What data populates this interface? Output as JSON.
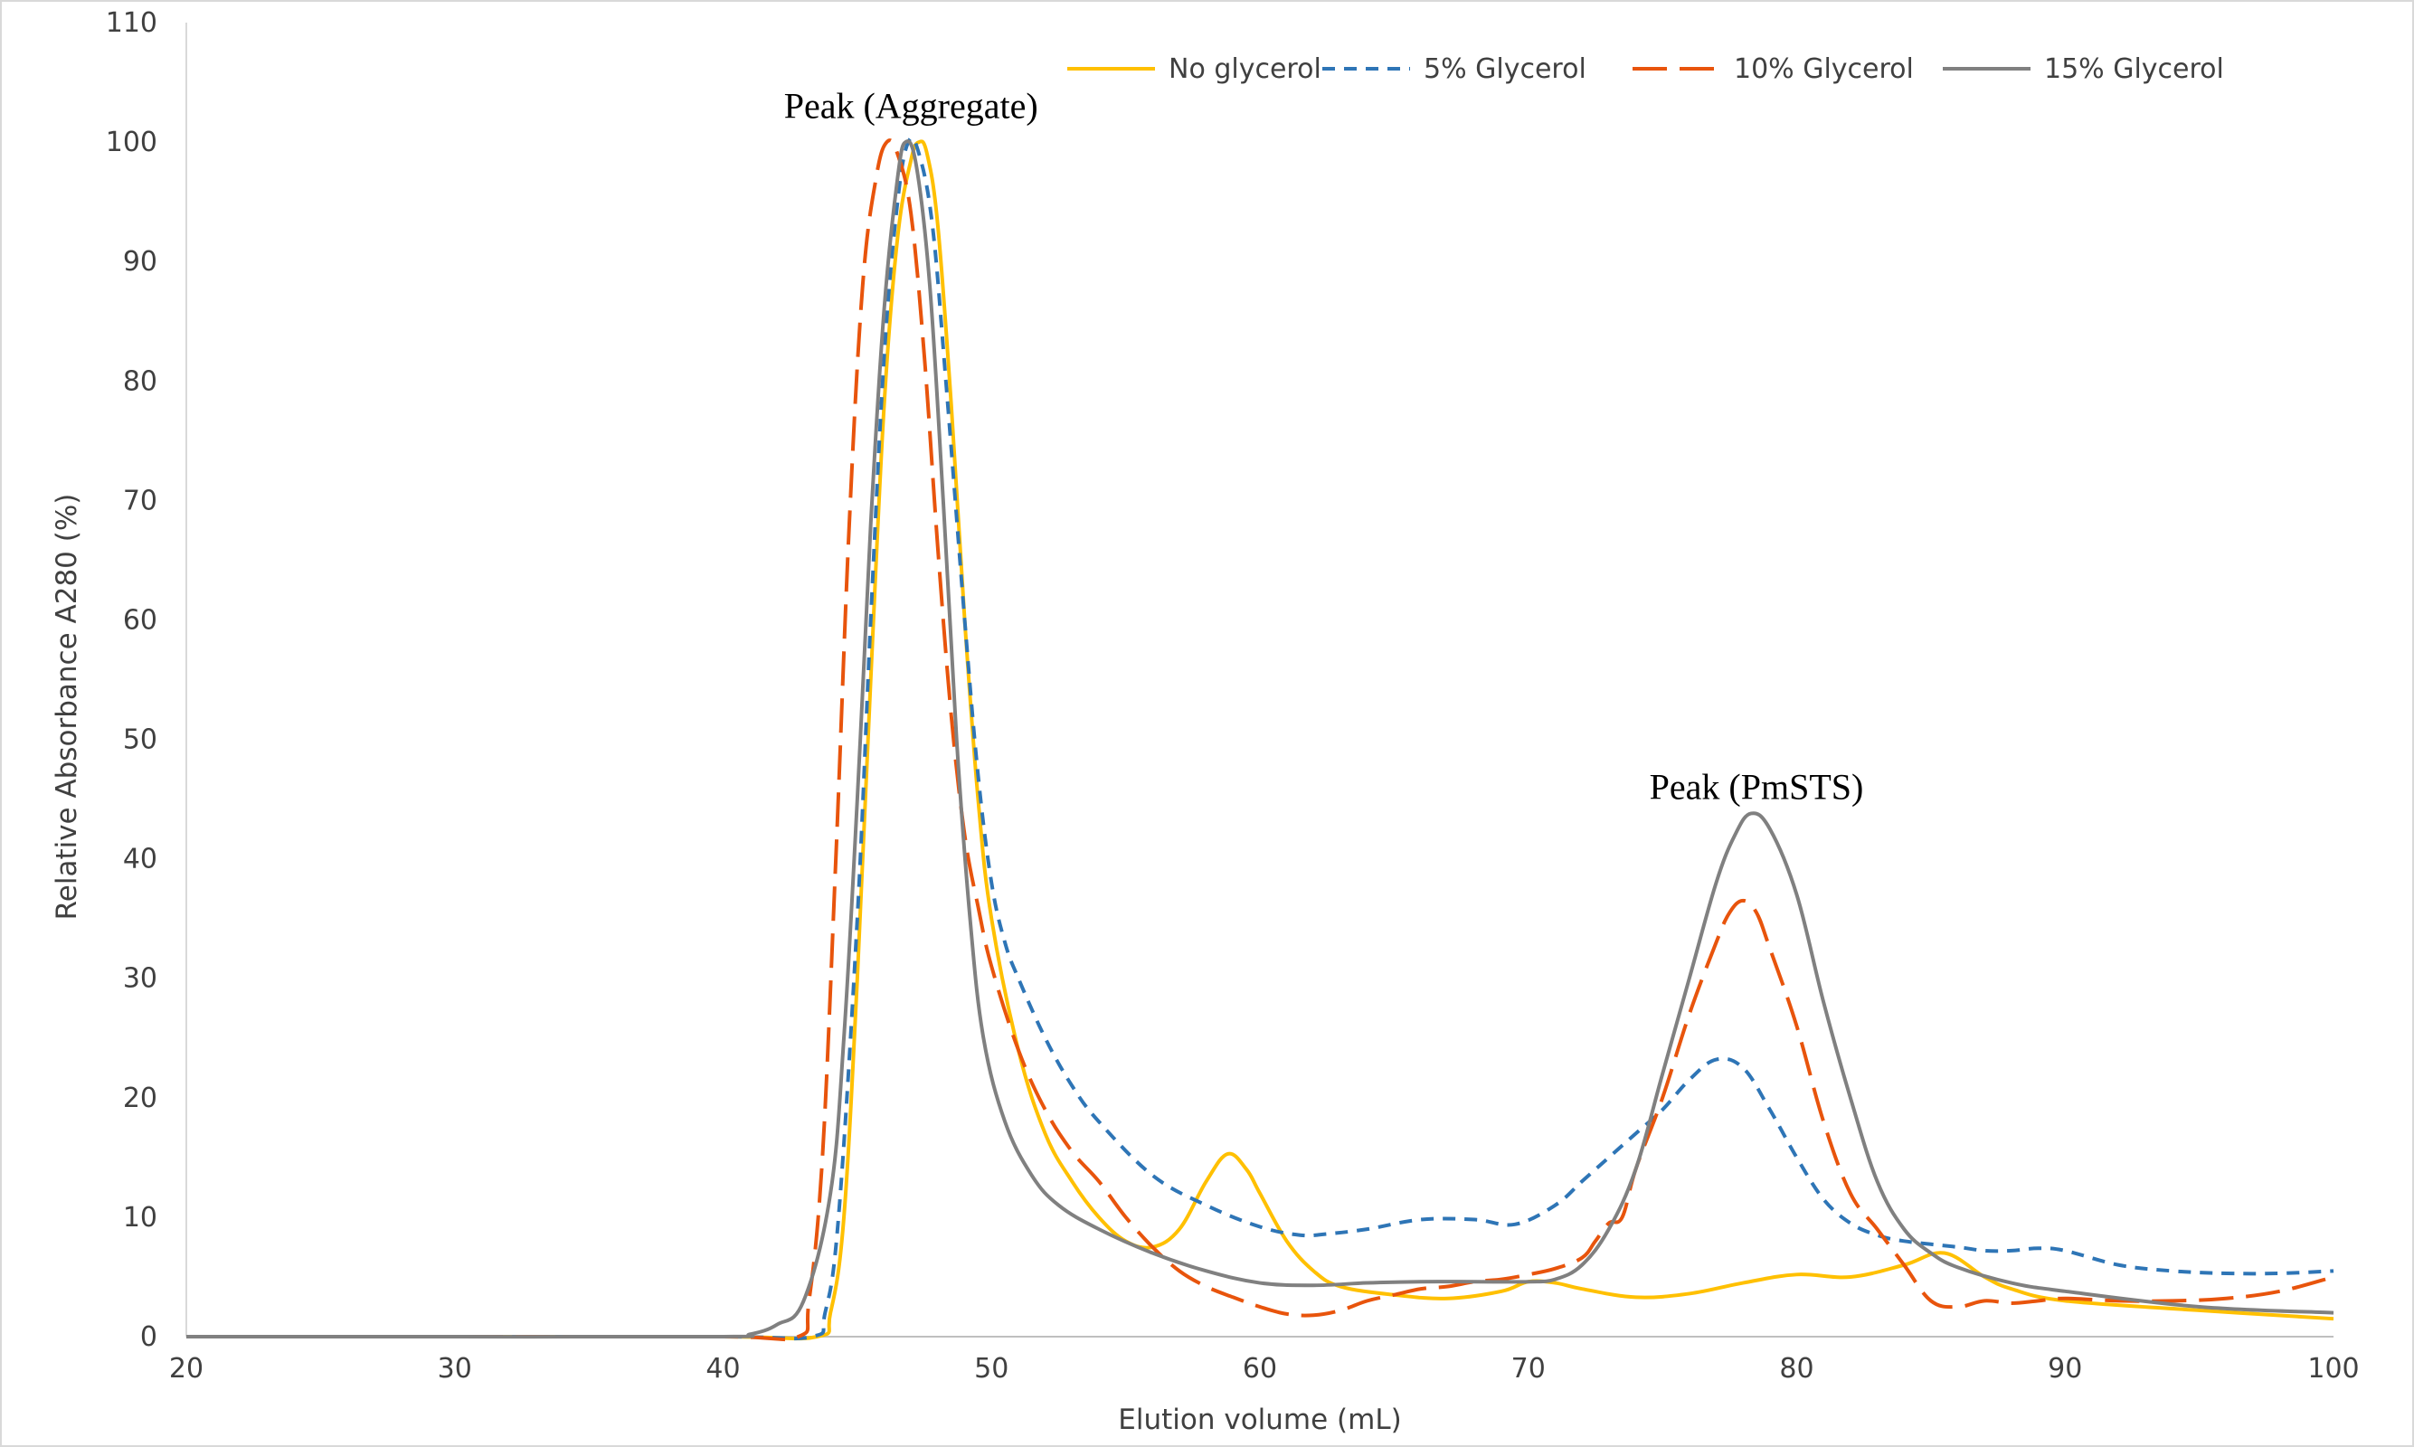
{
  "chart_data": {
    "type": "line",
    "title": "",
    "xlabel": "Elution volume (mL)",
    "ylabel": "Relative Absorbance A280 (%)",
    "xlim": [
      20,
      100
    ],
    "ylim": [
      0,
      110
    ],
    "xticks": [
      20,
      30,
      40,
      50,
      60,
      70,
      80,
      90,
      100
    ],
    "yticks": [
      0,
      10,
      20,
      30,
      40,
      50,
      60,
      70,
      80,
      90,
      100,
      110
    ],
    "grid": false,
    "legend_position": "top-right",
    "annotations": [
      {
        "text": "Peak (Aggregate)",
        "x": 47,
        "y": 102
      },
      {
        "text": "Peak (PmSTS)",
        "x": 78.5,
        "y": 45
      }
    ],
    "series": [
      {
        "name": "No glycerol",
        "color": "#FFC000",
        "dash": "solid",
        "points": [
          [
            20,
            0
          ],
          [
            30,
            0
          ],
          [
            40,
            0
          ],
          [
            43.5,
            0
          ],
          [
            44,
            2
          ],
          [
            44.5,
            10
          ],
          [
            45,
            30
          ],
          [
            45.5,
            55
          ],
          [
            46,
            78
          ],
          [
            46.5,
            92
          ],
          [
            47,
            98.5
          ],
          [
            47.3,
            100
          ],
          [
            47.6,
            99
          ],
          [
            48,
            93
          ],
          [
            48.5,
            78
          ],
          [
            49,
            60
          ],
          [
            49.5,
            45
          ],
          [
            50,
            35
          ],
          [
            51,
            24
          ],
          [
            52,
            17
          ],
          [
            53,
            13
          ],
          [
            54,
            10
          ],
          [
            55,
            8
          ],
          [
            56,
            7.5
          ],
          [
            57,
            9
          ],
          [
            58,
            13
          ],
          [
            58.8,
            15.3
          ],
          [
            59.5,
            14
          ],
          [
            60,
            12
          ],
          [
            61,
            8
          ],
          [
            62,
            5.5
          ],
          [
            63,
            4.2
          ],
          [
            65,
            3.5
          ],
          [
            67,
            3.2
          ],
          [
            69,
            3.8
          ],
          [
            70,
            4.6
          ],
          [
            71,
            4.5
          ],
          [
            72,
            4
          ],
          [
            74,
            3.3
          ],
          [
            76,
            3.6
          ],
          [
            78,
            4.5
          ],
          [
            80,
            5.2
          ],
          [
            82,
            5
          ],
          [
            84,
            6
          ],
          [
            85.5,
            7
          ],
          [
            87,
            5
          ],
          [
            88,
            4
          ],
          [
            90,
            3
          ],
          [
            95,
            2.2
          ],
          [
            100,
            1.5
          ]
        ]
      },
      {
        "name": "5% Glycerol",
        "color": "#2E75B6",
        "dash": "short-dash",
        "points": [
          [
            20,
            0
          ],
          [
            30,
            0
          ],
          [
            40,
            0
          ],
          [
            43.3,
            0
          ],
          [
            43.8,
            2
          ],
          [
            44.3,
            10
          ],
          [
            45,
            35
          ],
          [
            45.5,
            60
          ],
          [
            46,
            82
          ],
          [
            46.5,
            95
          ],
          [
            46.9,
            100
          ],
          [
            47.3,
            99
          ],
          [
            47.8,
            93
          ],
          [
            48.3,
            80
          ],
          [
            49,
            60
          ],
          [
            49.5,
            47
          ],
          [
            50,
            38
          ],
          [
            50.5,
            33
          ],
          [
            51,
            30
          ],
          [
            52,
            25
          ],
          [
            53,
            21
          ],
          [
            54,
            18
          ],
          [
            56,
            13.5
          ],
          [
            58,
            11
          ],
          [
            60,
            9.2
          ],
          [
            61.5,
            8.5
          ],
          [
            62.5,
            8.6
          ],
          [
            64,
            9
          ],
          [
            66,
            9.8
          ],
          [
            68,
            9.8
          ],
          [
            69.5,
            9.4
          ],
          [
            71,
            11
          ],
          [
            72,
            13
          ],
          [
            73,
            15
          ],
          [
            74,
            17
          ],
          [
            75,
            19
          ],
          [
            76,
            21.5
          ],
          [
            77,
            23.2
          ],
          [
            78,
            22.5
          ],
          [
            79,
            19
          ],
          [
            80,
            15
          ],
          [
            81,
            11.5
          ],
          [
            82,
            9.5
          ],
          [
            83,
            8.5
          ],
          [
            84,
            8
          ],
          [
            86,
            7.5
          ],
          [
            87,
            7.2
          ],
          [
            88,
            7.2
          ],
          [
            89,
            7.4
          ],
          [
            90,
            7.2
          ],
          [
            92,
            6
          ],
          [
            94,
            5.5
          ],
          [
            96,
            5.3
          ],
          [
            98,
            5.3
          ],
          [
            100,
            5.5
          ]
        ]
      },
      {
        "name": "10% Glycerol",
        "color": "#E8540C",
        "dash": "long-dash",
        "points": [
          [
            20,
            0
          ],
          [
            30,
            0
          ],
          [
            40,
            0
          ],
          [
            42.8,
            0
          ],
          [
            43.2,
            3
          ],
          [
            43.7,
            15
          ],
          [
            44.2,
            40
          ],
          [
            44.7,
            68
          ],
          [
            45.2,
            88
          ],
          [
            45.7,
            97
          ],
          [
            46.1,
            100
          ],
          [
            46.5,
            99
          ],
          [
            47,
            94
          ],
          [
            47.5,
            82
          ],
          [
            48,
            66
          ],
          [
            48.5,
            52
          ],
          [
            49,
            42
          ],
          [
            49.5,
            36
          ],
          [
            50,
            31
          ],
          [
            51,
            24
          ],
          [
            52,
            19
          ],
          [
            53,
            15.5
          ],
          [
            54,
            13
          ],
          [
            55,
            10
          ],
          [
            56,
            7.5
          ],
          [
            57,
            5.5
          ],
          [
            58,
            4.2
          ],
          [
            59,
            3.3
          ],
          [
            60,
            2.5
          ],
          [
            61,
            1.9
          ],
          [
            62,
            1.8
          ],
          [
            63,
            2.2
          ],
          [
            64,
            3
          ],
          [
            65,
            3.5
          ],
          [
            66,
            4
          ],
          [
            67,
            4.2
          ],
          [
            68,
            4.6
          ],
          [
            69,
            4.8
          ],
          [
            70,
            5.2
          ],
          [
            71,
            5.7
          ],
          [
            72,
            6.6
          ],
          [
            72.5,
            8
          ],
          [
            73,
            9.5
          ],
          [
            73.5,
            10
          ],
          [
            74,
            14
          ],
          [
            75,
            20
          ],
          [
            76,
            27
          ],
          [
            77,
            33
          ],
          [
            77.5,
            35.5
          ],
          [
            78,
            36.5
          ],
          [
            78.5,
            35.5
          ],
          [
            79,
            32.5
          ],
          [
            80,
            26
          ],
          [
            81,
            18
          ],
          [
            82,
            12
          ],
          [
            83,
            9
          ],
          [
            84,
            6
          ],
          [
            85,
            3
          ],
          [
            86,
            2.5
          ],
          [
            87,
            3
          ],
          [
            88,
            2.8
          ],
          [
            89,
            3
          ],
          [
            90,
            3.2
          ],
          [
            92,
            3
          ],
          [
            94,
            3
          ],
          [
            96,
            3.2
          ],
          [
            98,
            3.8
          ],
          [
            100,
            5
          ]
        ]
      },
      {
        "name": "15% Glycerol",
        "color": "#808080",
        "dash": "solid",
        "points": [
          [
            20,
            0
          ],
          [
            30,
            0
          ],
          [
            40,
            0
          ],
          [
            41,
            0.2
          ],
          [
            42,
            1
          ],
          [
            43,
            3
          ],
          [
            44,
            12
          ],
          [
            44.5,
            25
          ],
          [
            45,
            45
          ],
          [
            45.5,
            68
          ],
          [
            46,
            86
          ],
          [
            46.5,
            97
          ],
          [
            46.8,
            100
          ],
          [
            47.2,
            98
          ],
          [
            47.7,
            88
          ],
          [
            48.2,
            70
          ],
          [
            48.7,
            50
          ],
          [
            49.2,
            35
          ],
          [
            49.7,
            25
          ],
          [
            50.5,
            18
          ],
          [
            51.5,
            13.5
          ],
          [
            52.5,
            11
          ],
          [
            54,
            9
          ],
          [
            56,
            7
          ],
          [
            58,
            5.5
          ],
          [
            60,
            4.5
          ],
          [
            62,
            4.3
          ],
          [
            64,
            4.5
          ],
          [
            66,
            4.6
          ],
          [
            68,
            4.6
          ],
          [
            70,
            4.6
          ],
          [
            71,
            4.8
          ],
          [
            72,
            6
          ],
          [
            73,
            9
          ],
          [
            74,
            14
          ],
          [
            75,
            22
          ],
          [
            76,
            30
          ],
          [
            77,
            38
          ],
          [
            77.7,
            42
          ],
          [
            78.3,
            43.8
          ],
          [
            79,
            42.5
          ],
          [
            80,
            37
          ],
          [
            81,
            28
          ],
          [
            82,
            20
          ],
          [
            83,
            13
          ],
          [
            84,
            9
          ],
          [
            85,
            7
          ],
          [
            86,
            5.8
          ],
          [
            88,
            4.5
          ],
          [
            90,
            3.8
          ],
          [
            95,
            2.5
          ],
          [
            100,
            2
          ]
        ]
      }
    ]
  }
}
